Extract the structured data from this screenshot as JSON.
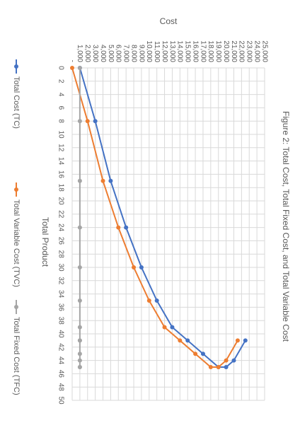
{
  "chart_data": {
    "type": "line",
    "title": "Figure 2: Total Cost, Total Fixed Cost, and Total Variable Cost",
    "xlabel": "Total Product",
    "ylabel": "Cost",
    "xlim": [
      0,
      50
    ],
    "ylim": [
      0,
      25000
    ],
    "x_ticks": [
      0,
      2,
      4,
      6,
      8,
      10,
      12,
      14,
      16,
      18,
      20,
      22,
      24,
      26,
      28,
      30,
      32,
      34,
      36,
      38,
      40,
      42,
      44,
      46,
      48,
      50
    ],
    "x_tick_labels": [
      "0",
      "2",
      "4",
      "6",
      "8",
      "10",
      "12",
      "14",
      "16",
      "18",
      "20",
      "22",
      "24",
      "26",
      "28",
      "30",
      "32",
      "34",
      "36",
      "38",
      "40",
      "42",
      "44",
      "46",
      "48",
      "50"
    ],
    "y_ticks": [
      0,
      1000,
      2000,
      3000,
      4000,
      5000,
      6000,
      7000,
      8000,
      9000,
      10000,
      11000,
      12000,
      13000,
      14000,
      15000,
      16000,
      17000,
      18000,
      19000,
      20000,
      21000,
      22000,
      23000,
      24000,
      25000
    ],
    "y_tick_labels": [
      "-",
      "1,000",
      "2,000",
      "3,000",
      "4,000",
      "5,000",
      "6,000",
      "7,000",
      "8,000",
      "9,000",
      "10,000",
      "11,000",
      "12,000",
      "13,000",
      "14,000",
      "15,000",
      "16,000",
      "17,000",
      "18,000",
      "19,000",
      "20,000",
      "21,000",
      "22,000",
      "23,000",
      "24,000",
      "25,000"
    ],
    "grid": true,
    "legend_position": "bottom",
    "x": [
      0,
      8,
      17,
      24,
      30,
      35,
      39,
      41,
      43,
      45,
      45,
      44,
      41
    ],
    "series": [
      {
        "name": "Total Cost (TC)",
        "color": "#4472C4",
        "values": [
          1000,
          3000,
          5000,
          7000,
          9000,
          11000,
          13000,
          15000,
          17000,
          19000,
          20000,
          21000,
          22500
        ]
      },
      {
        "name": "Total Variable Cost (TVC)",
        "color": "#ED7D31",
        "values": [
          0,
          2000,
          4000,
          6000,
          8000,
          10000,
          12000,
          14000,
          16000,
          18000,
          19000,
          20000,
          21500
        ]
      },
      {
        "name": "Total Fixed Cost (TFC)",
        "color": "#A5A5A5",
        "values": [
          1000,
          1000,
          1000,
          1000,
          1000,
          1000,
          1000,
          1000,
          1000,
          1000,
          1000,
          1000,
          1000
        ]
      }
    ]
  }
}
